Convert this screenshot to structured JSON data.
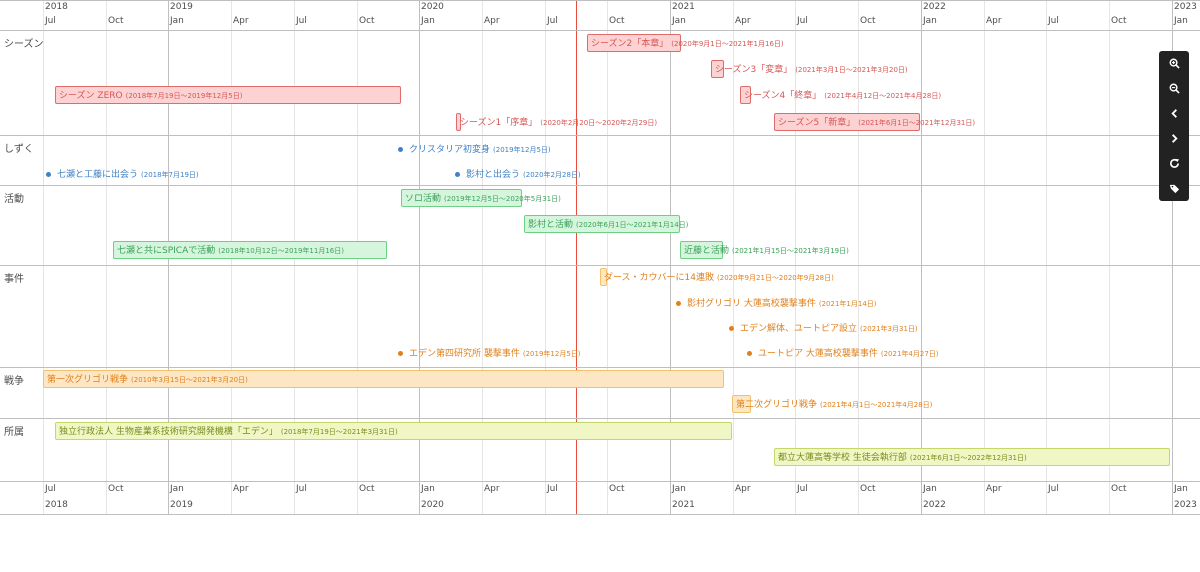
{
  "axis": {
    "years": [
      "2018",
      "2019",
      "2020",
      "2021",
      "2022",
      "2023"
    ],
    "months": [
      "Jul",
      "Oct",
      "Jan",
      "Apr",
      "Jul",
      "Oct",
      "Jan",
      "Apr",
      "Jul",
      "Oct",
      "Jan",
      "Apr",
      "Jul",
      "Oct",
      "Jan",
      "Apr",
      "Jul",
      "Oct",
      "Jan"
    ]
  },
  "groups": [
    "シーズン",
    "しずく",
    "活動",
    "事件",
    "戦争",
    "所属"
  ],
  "items": [
    {
      "group": "シーズン",
      "type": "range",
      "color": "red",
      "name": "シーズン2「本章」",
      "sub": "(2020年9月1日〜2021年1月16日)"
    },
    {
      "group": "シーズン",
      "type": "range",
      "color": "red",
      "name": "シーズン3「変章」",
      "sub": "(2021年3月1日〜2021年3月20日)"
    },
    {
      "group": "シーズン",
      "type": "range",
      "color": "red",
      "name": "シーズン ZERO",
      "sub": "(2018年7月19日〜2019年12月5日)"
    },
    {
      "group": "シーズン",
      "type": "range",
      "color": "red",
      "name": "シーズン4「終章」",
      "sub": "(2021年4月12日〜2021年4月28日)"
    },
    {
      "group": "シーズン",
      "type": "range",
      "color": "red",
      "name": "シーズン1「序章」",
      "sub": "(2020年2月20日〜2020年2月29日)"
    },
    {
      "group": "シーズン",
      "type": "range",
      "color": "red",
      "name": "シーズン5「新章」",
      "sub": "(2021年6月1日〜2021年12月31日)"
    },
    {
      "group": "しずく",
      "type": "point",
      "color": "blue",
      "name": "クリスタリア初変身",
      "sub": "(2019年12月5日)"
    },
    {
      "group": "しずく",
      "type": "point",
      "color": "blue",
      "name": "七瀬と工藤に出会う",
      "sub": "(2018年7月19日)"
    },
    {
      "group": "しずく",
      "type": "point",
      "color": "blue",
      "name": "影村と出会う",
      "sub": "(2020年2月28日)"
    },
    {
      "group": "活動",
      "type": "range",
      "color": "green",
      "name": "ソロ活動",
      "sub": "(2019年12月5日〜2020年5月31日)"
    },
    {
      "group": "活動",
      "type": "range",
      "color": "green",
      "name": "影村と活動",
      "sub": "(2020年6月1日〜2021年1月14日)"
    },
    {
      "group": "活動",
      "type": "range",
      "color": "green",
      "name": "七瀬と共にSPICAで活動",
      "sub": "(2018年10月12日〜2019年11月16日)"
    },
    {
      "group": "活動",
      "type": "range",
      "color": "green",
      "name": "近藤と活動",
      "sub": "(2021年1月15日〜2021年3月19日)"
    },
    {
      "group": "事件",
      "type": "range",
      "color": "orange",
      "name": "ダース・カウバーに14連敗",
      "sub": "(2020年9月21日〜2020年9月28日)"
    },
    {
      "group": "事件",
      "type": "point",
      "color": "orange",
      "name": "影村グリゴリ 大蓮高校襲撃事件",
      "sub": "(2021年1月14日)"
    },
    {
      "group": "事件",
      "type": "point",
      "color": "orange",
      "name": "エデン解体、ユートピア設立",
      "sub": "(2021年3月31日)"
    },
    {
      "group": "事件",
      "type": "point",
      "color": "orange",
      "name": "エデン第四研究所 襲撃事件",
      "sub": "(2019年12月5日)"
    },
    {
      "group": "事件",
      "type": "point",
      "color": "orange",
      "name": "ユートピア 大蓮高校襲撃事件",
      "sub": "(2021年4月27日)"
    },
    {
      "group": "戦争",
      "type": "range",
      "color": "orange",
      "name": "第一次グリゴリ戦争",
      "sub": "(2010年3月15日〜2021年3月20日)"
    },
    {
      "group": "戦争",
      "type": "range",
      "color": "orange",
      "name": "第二次グリゴリ戦争",
      "sub": "(2021年4月1日〜2021年4月28日)"
    },
    {
      "group": "所属",
      "type": "range",
      "color": "olive",
      "name": "独立行政法人 生物産業系技術研究開発機構「エデン」",
      "sub": "(2018年7月19日〜2021年3月31日)"
    },
    {
      "group": "所属",
      "type": "range",
      "color": "olive",
      "name": "都立大蓮高等学校 生徒会執行部",
      "sub": "(2021年6月1日〜2022年12月31日)"
    }
  ],
  "nav": [
    {
      "icon": "zoom-in-icon"
    },
    {
      "icon": "zoom-out-icon"
    },
    {
      "icon": "chevron-left-icon"
    },
    {
      "icon": "chevron-right-icon"
    },
    {
      "icon": "refresh-icon"
    },
    {
      "icon": "tag-icon"
    }
  ],
  "colors": {
    "now": "#e74c3c",
    "red": "#d65656",
    "blue": "#3e82c4",
    "green": "#3aa35a",
    "orange": "#e0801b",
    "olive": "#7a8b1e"
  }
}
